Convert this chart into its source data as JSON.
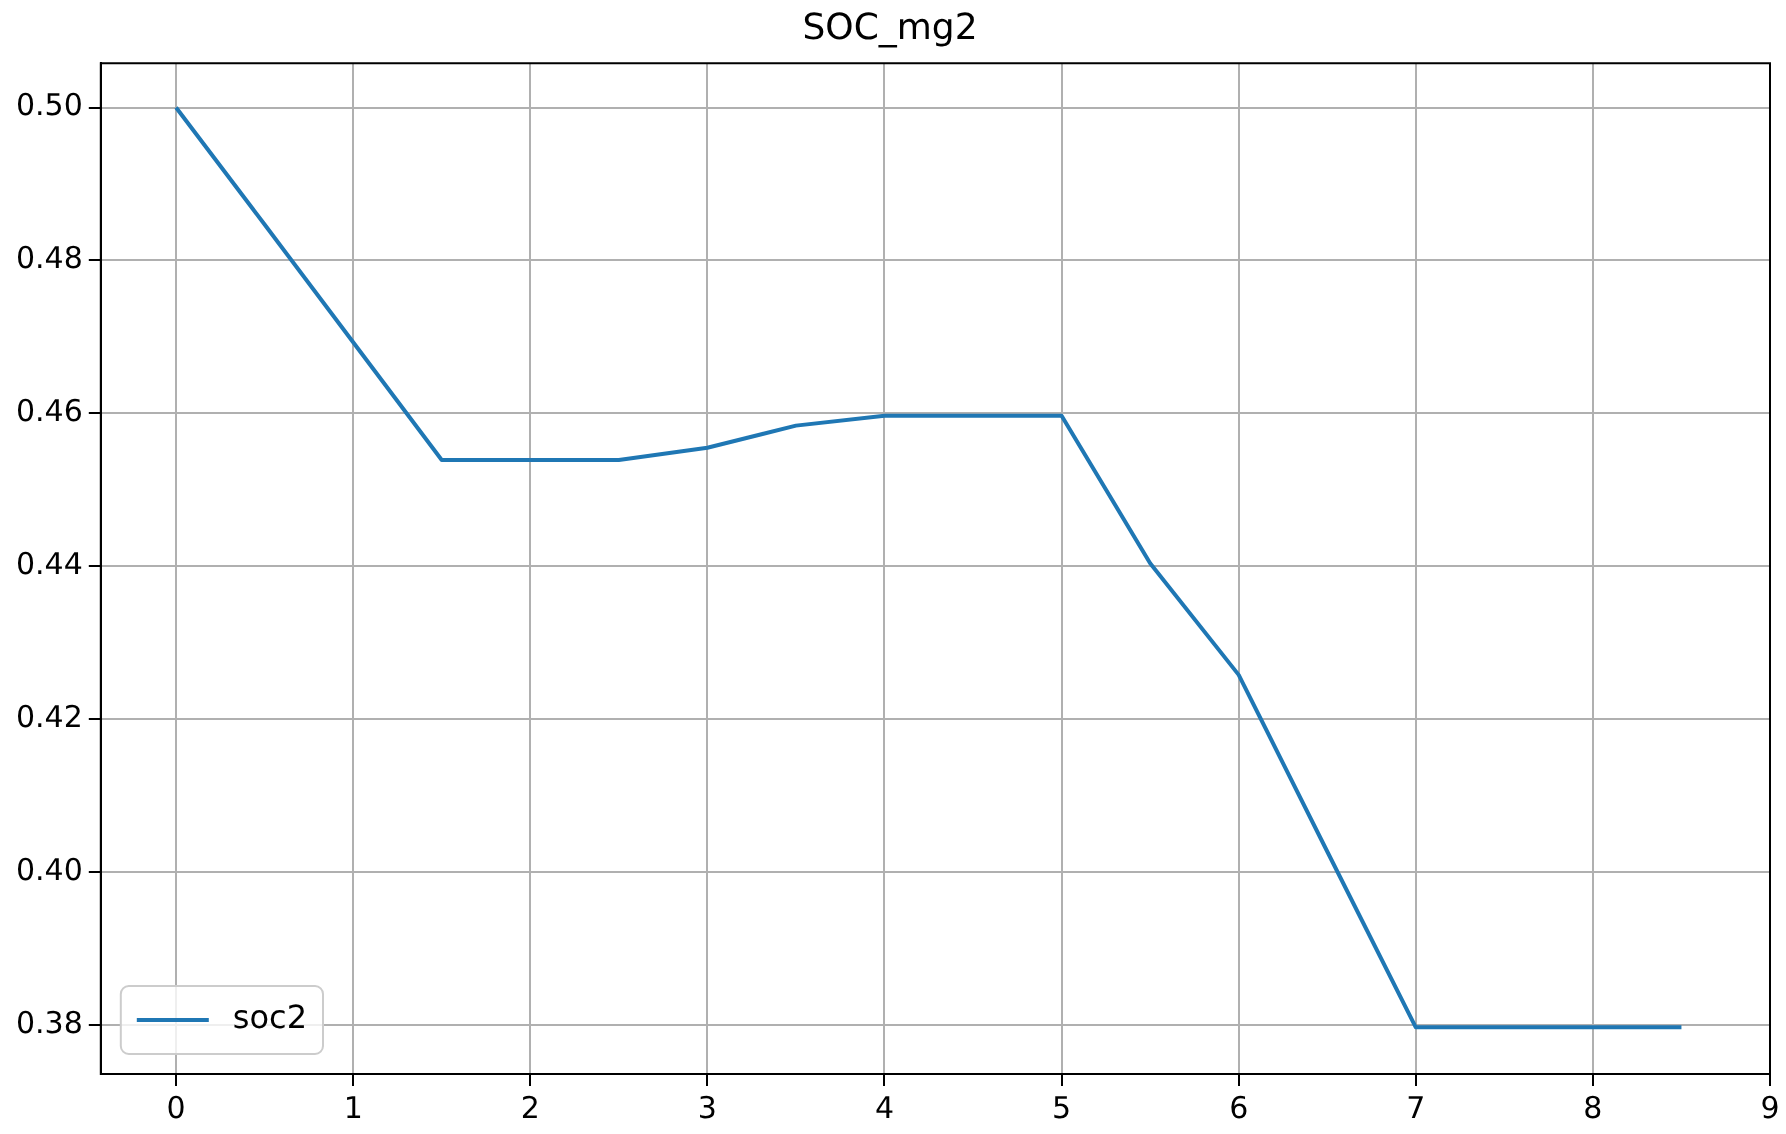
{
  "chart_data": {
    "type": "line",
    "title": "SOC_mg2",
    "x": [
      0,
      0.5,
      1,
      1.5,
      2,
      2.5,
      3,
      3.5,
      4,
      4.5,
      5,
      5.5,
      6,
      6.5,
      7,
      7.5,
      8,
      8.5
    ],
    "series": [
      {
        "name": "soc2",
        "color": "#1f77b4",
        "values": [
          0.5,
          0.4847,
          0.4693,
          0.4539,
          0.4539,
          0.4539,
          0.4555,
          0.4584,
          0.4597,
          0.4597,
          0.4597,
          0.4404,
          0.4258,
          0.4027,
          0.3797,
          0.3797,
          0.3797,
          0.3797
        ]
      }
    ],
    "xlim": [
      -0.425,
      9
    ],
    "xticks": [
      0,
      1,
      2,
      3,
      4,
      5,
      6,
      7,
      8,
      9
    ],
    "ylim": [
      0.3736,
      0.5058
    ],
    "yticks": [
      {
        "value": 0.38,
        "label": "0.38"
      },
      {
        "value": 0.4,
        "label": "0.40"
      },
      {
        "value": 0.42,
        "label": "0.42"
      },
      {
        "value": 0.44,
        "label": "0.44"
      },
      {
        "value": 0.46,
        "label": "0.46"
      },
      {
        "value": 0.48,
        "label": "0.48"
      },
      {
        "value": 0.5,
        "label": "0.50"
      }
    ],
    "grid": true,
    "legend": "bottom left",
    "marker": "none",
    "line_style": "solid"
  }
}
